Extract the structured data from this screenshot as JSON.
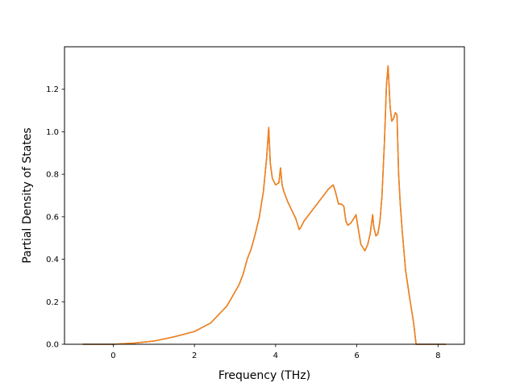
{
  "chart_data": {
    "type": "line",
    "title": "",
    "xlabel": "Frequency (THz)",
    "ylabel": "Partial Density of States",
    "xlim": [
      -1.2,
      8.65
    ],
    "ylim": [
      0.0,
      1.4
    ],
    "xticks": [
      0,
      2,
      4,
      6,
      8
    ],
    "xtick_labels": [
      "0",
      "2",
      "4",
      "6",
      "8"
    ],
    "yticks": [
      0.0,
      0.2,
      0.4,
      0.6,
      0.8,
      1.0,
      1.2
    ],
    "ytick_labels": [
      "0.0",
      "0.2",
      "0.4",
      "0.6",
      "0.8",
      "1.0",
      "1.2"
    ],
    "grid": false,
    "series": [
      {
        "color": "#1f77b4",
        "x": [
          -0.75,
          0,
          0.5,
          1.0,
          1.5,
          2.0,
          2.4,
          2.8,
          3.1,
          3.2,
          3.3,
          3.4,
          3.5,
          3.6,
          3.7,
          3.78,
          3.83,
          3.87,
          3.92,
          4.0,
          4.08,
          4.12,
          4.16,
          4.2,
          4.3,
          4.4,
          4.5,
          4.58,
          4.62,
          4.7,
          4.9,
          5.1,
          5.3,
          5.42,
          5.47,
          5.55,
          5.62,
          5.68,
          5.73,
          5.78,
          5.85,
          5.92,
          5.98,
          6.03,
          6.1,
          6.2,
          6.27,
          6.33,
          6.39,
          6.42,
          6.47,
          6.52,
          6.57,
          6.62,
          6.68,
          6.73,
          6.77,
          6.82,
          6.86,
          6.9,
          6.95,
          6.99,
          7.03,
          7.07,
          7.12,
          7.2,
          7.3,
          7.4,
          7.46,
          7.52,
          8.2
        ],
        "y": [
          0.0,
          0.0,
          0.005,
          0.015,
          0.035,
          0.06,
          0.1,
          0.18,
          0.28,
          0.33,
          0.4,
          0.45,
          0.52,
          0.6,
          0.72,
          0.88,
          1.02,
          0.85,
          0.78,
          0.75,
          0.76,
          0.83,
          0.75,
          0.72,
          0.67,
          0.63,
          0.59,
          0.54,
          0.55,
          0.58,
          0.63,
          0.68,
          0.73,
          0.75,
          0.72,
          0.66,
          0.66,
          0.65,
          0.58,
          0.56,
          0.57,
          0.59,
          0.61,
          0.55,
          0.47,
          0.44,
          0.47,
          0.52,
          0.61,
          0.55,
          0.51,
          0.52,
          0.58,
          0.7,
          0.95,
          1.22,
          1.31,
          1.12,
          1.05,
          1.06,
          1.09,
          1.08,
          0.8,
          0.66,
          0.53,
          0.35,
          0.22,
          0.1,
          0.0,
          0.0,
          0.0
        ]
      },
      {
        "color": "#ff7f0e",
        "x": [
          -0.75,
          0,
          0.5,
          1.0,
          1.5,
          2.0,
          2.4,
          2.8,
          3.1,
          3.2,
          3.3,
          3.4,
          3.5,
          3.6,
          3.7,
          3.78,
          3.83,
          3.87,
          3.92,
          4.0,
          4.08,
          4.12,
          4.16,
          4.2,
          4.3,
          4.4,
          4.5,
          4.58,
          4.62,
          4.7,
          4.9,
          5.1,
          5.3,
          5.42,
          5.47,
          5.55,
          5.62,
          5.68,
          5.73,
          5.78,
          5.85,
          5.92,
          5.98,
          6.03,
          6.1,
          6.2,
          6.27,
          6.33,
          6.39,
          6.42,
          6.47,
          6.52,
          6.57,
          6.62,
          6.68,
          6.73,
          6.77,
          6.82,
          6.86,
          6.9,
          6.95,
          6.99,
          7.03,
          7.07,
          7.12,
          7.2,
          7.3,
          7.4,
          7.46,
          7.52,
          8.2
        ],
        "y": [
          0.0,
          0.0,
          0.005,
          0.015,
          0.035,
          0.06,
          0.1,
          0.18,
          0.28,
          0.33,
          0.4,
          0.45,
          0.52,
          0.6,
          0.72,
          0.88,
          1.02,
          0.85,
          0.78,
          0.75,
          0.76,
          0.83,
          0.75,
          0.72,
          0.67,
          0.63,
          0.59,
          0.54,
          0.55,
          0.58,
          0.63,
          0.68,
          0.73,
          0.75,
          0.72,
          0.66,
          0.66,
          0.65,
          0.58,
          0.56,
          0.57,
          0.59,
          0.61,
          0.55,
          0.47,
          0.44,
          0.47,
          0.52,
          0.61,
          0.55,
          0.51,
          0.52,
          0.58,
          0.7,
          0.95,
          1.22,
          1.31,
          1.12,
          1.05,
          1.06,
          1.09,
          1.08,
          0.8,
          0.66,
          0.53,
          0.35,
          0.22,
          0.1,
          0.0,
          0.0,
          0.0
        ]
      }
    ]
  }
}
